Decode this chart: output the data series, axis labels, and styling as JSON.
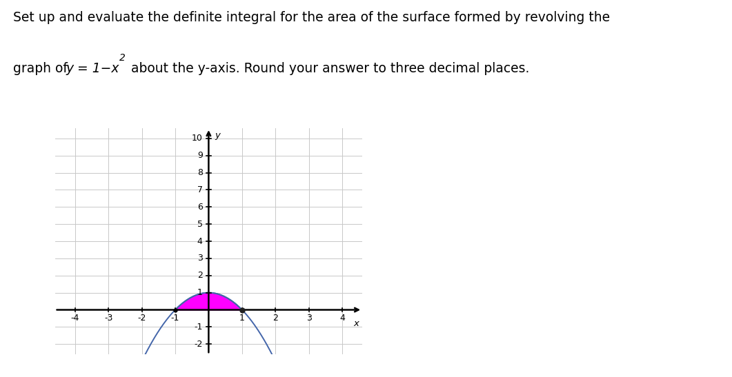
{
  "title_line1": "Set up and evaluate the definite integral for the area of the surface formed by revolving the",
  "title_line2_prefix": "graph of",
  "title_formula_y": "y",
  "title_formula_eq": " = 1−x",
  "title_formula_sup": "2",
  "title_line2_suffix": " about the y-axis. Round your answer to three decimal places.",
  "xlim": [
    -4.6,
    4.6
  ],
  "ylim": [
    -2.6,
    10.6
  ],
  "xticks": [
    -4,
    -3,
    -2,
    -1,
    1,
    2,
    3,
    4
  ],
  "yticks": [
    -2,
    -1,
    1,
    2,
    3,
    4,
    5,
    6,
    7,
    8,
    9,
    10
  ],
  "ylabel_text": "y",
  "xlabel_text": "x",
  "curve_color": "#4466aa",
  "fill_color": "#ff00ff",
  "fill_alpha": 1.0,
  "curve_linewidth": 1.4,
  "grid_color": "#c8c8c8",
  "grid_linewidth": 0.7,
  "background_color": "#ffffff",
  "figure_width": 10.61,
  "figure_height": 5.47
}
